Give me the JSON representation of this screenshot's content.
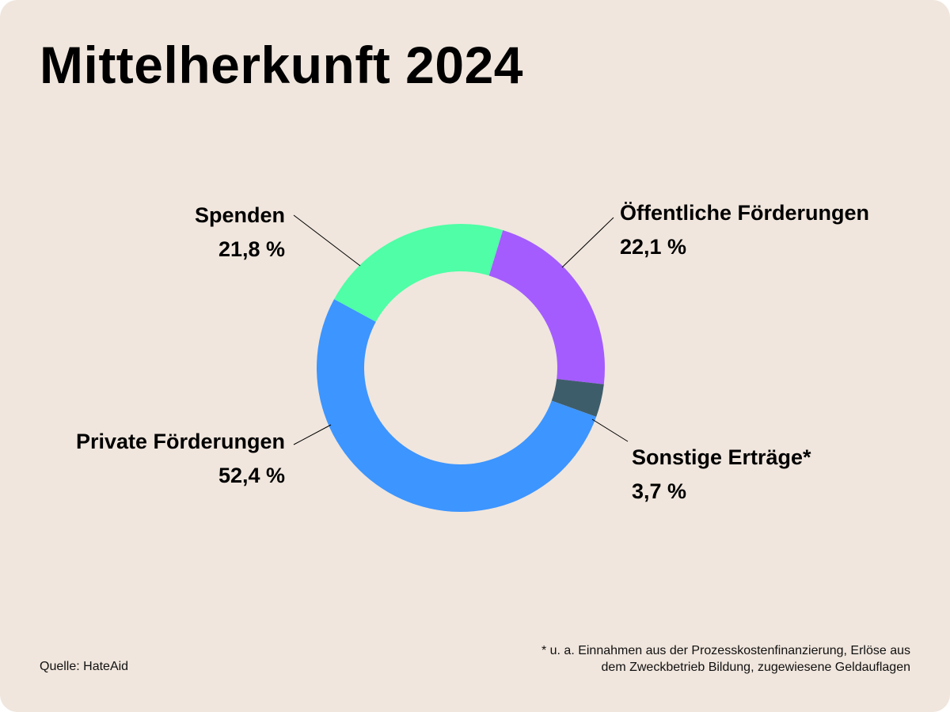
{
  "title": "Mittelherkunft 2024",
  "source": "Quelle: HateAid",
  "footnote": {
    "line1": "* u. a. Einnahmen aus der Prozesskostenfinanzierung, Erlöse aus",
    "line2": "dem Zweckbetrieb Bildung, zugewiesene Geldauflagen"
  },
  "chart_data": {
    "type": "pie",
    "variant": "donut",
    "title": "Mittelherkunft 2024",
    "unit": "%",
    "legend": "none",
    "slices": [
      {
        "name": "Öffentliche Förderungen",
        "value": 22.1,
        "value_label": "22,1 %",
        "color": "#a45cff"
      },
      {
        "name": "Sonstige Erträge*",
        "value": 3.7,
        "value_label": "3,7 %",
        "color": "#3e5d6b"
      },
      {
        "name": "Private Förderungen",
        "value": 52.4,
        "value_label": "52,4 %",
        "color": "#3d95ff"
      },
      {
        "name": "Spenden",
        "value": 21.8,
        "value_label": "21,8 %",
        "color": "#4ffea6"
      }
    ]
  }
}
